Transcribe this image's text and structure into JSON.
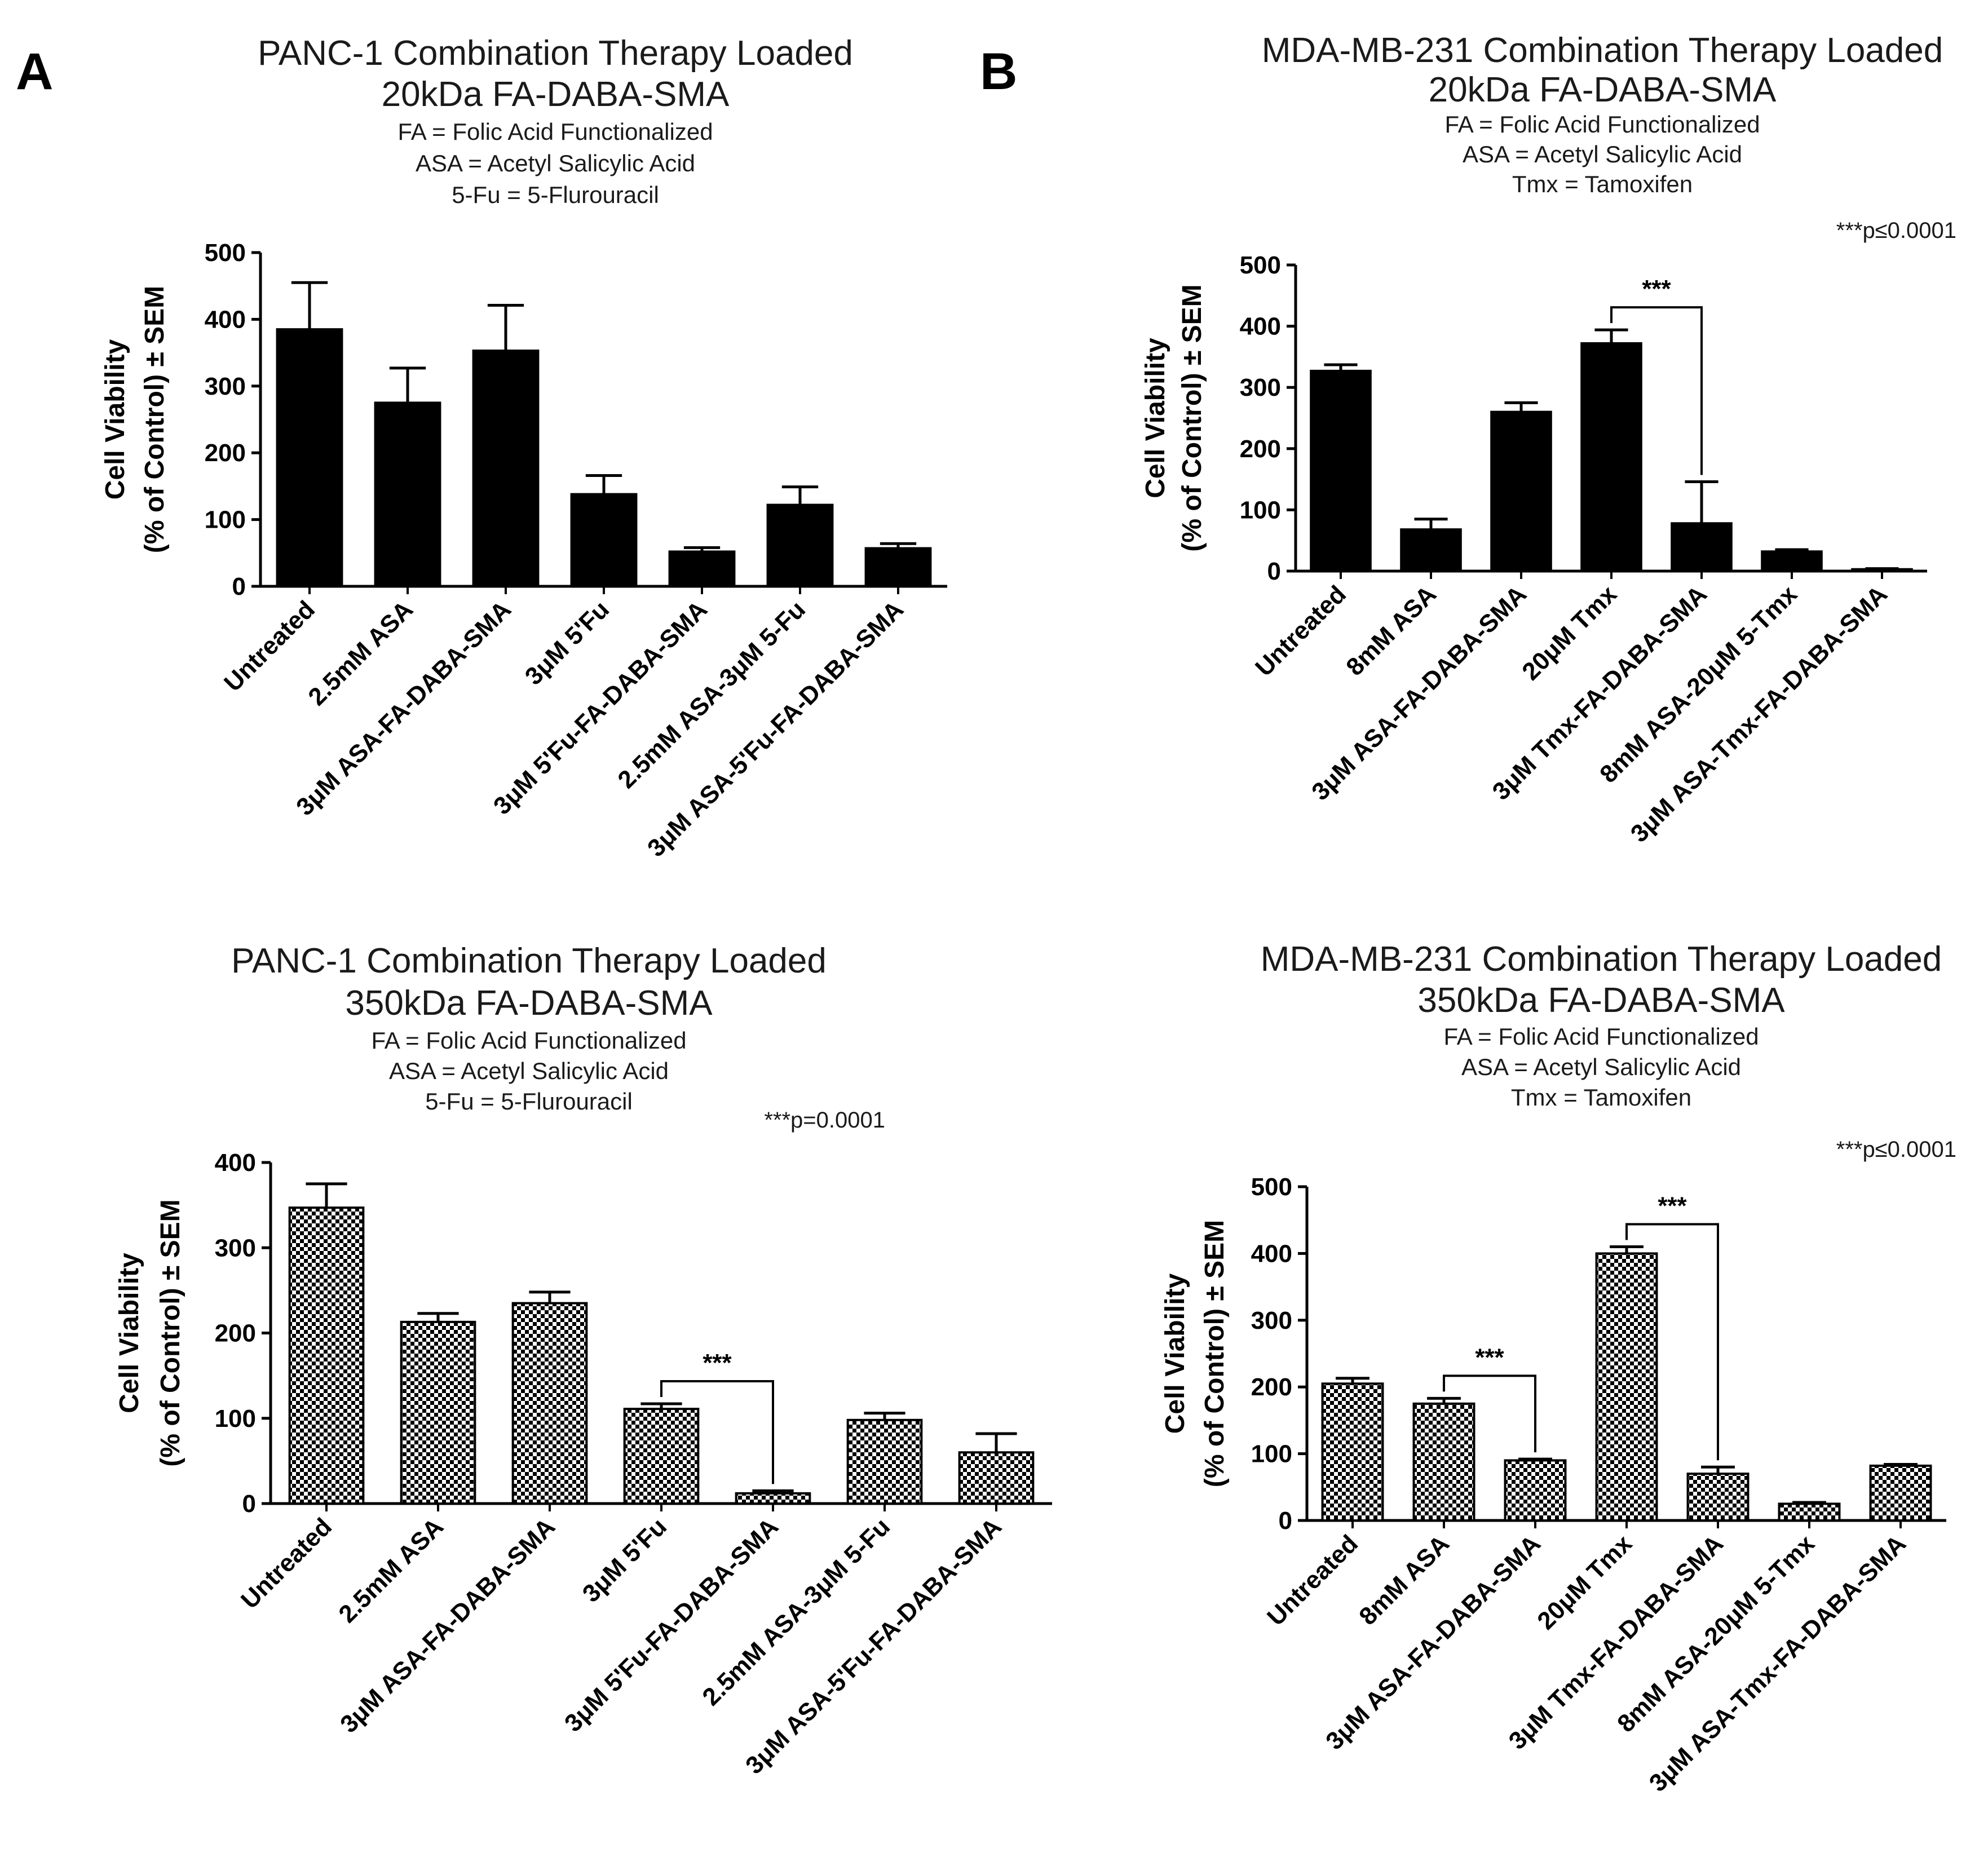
{
  "panel_labels": [
    "A",
    "B"
  ],
  "chart_data": [
    {
      "type": "bar",
      "fill": "solid",
      "panel": "A",
      "title": "PANC-1 Combination Therapy Loaded",
      "subtitle": "20kDa FA-DABA-SMA",
      "notes": [
        "FA = Folic Acid Functionalized",
        "ASA = Acetyl Salicylic Acid",
        "5-Fu = 5-Flurouracil"
      ],
      "ylabel_line1": "Cell Viability",
      "ylabel_line2": "(% of Control) ± SEM",
      "ylim": [
        0,
        500
      ],
      "yticks": [
        0,
        100,
        200,
        300,
        400,
        500
      ],
      "categories": [
        "Untreated",
        "2.5mM ASA",
        "3μM ASA-FA-DABA-SMA",
        "3μM 5'Fu",
        "3μM 5'Fu-FA-DABA-SMA",
        "2.5mM ASA-3μM 5-Fu",
        "3μM ASA-5'Fu-FA-DABA-SMA"
      ],
      "values": [
        385,
        275,
        353,
        138,
        52,
        122,
        57
      ],
      "errors": [
        70,
        52,
        68,
        28,
        6,
        27,
        7
      ],
      "significance_note": "",
      "brackets": []
    },
    {
      "type": "bar",
      "fill": "solid",
      "panel": "B",
      "title": "MDA-MB-231 Combination Therapy Loaded",
      "subtitle": "20kDa FA-DABA-SMA",
      "notes": [
        "FA = Folic Acid Functionalized",
        "ASA = Acetyl Salicylic Acid",
        "Tmx = Tamoxifen"
      ],
      "ylabel_line1": "Cell Viability",
      "ylabel_line2": "(% of Control) ± SEM",
      "ylim": [
        0,
        500
      ],
      "yticks": [
        0,
        100,
        200,
        300,
        400,
        500
      ],
      "categories": [
        "Untreated",
        "8mM ASA",
        "3μM ASA-FA-DABA-SMA",
        "20μM Tmx",
        "3μM Tmx-FA-DABA-SMA",
        "8mM ASA-20μM 5-Tmx",
        "3μM ASA-Tmx-FA-DABA-SMA"
      ],
      "values": [
        327,
        68,
        260,
        372,
        78,
        32,
        3
      ],
      "errors": [
        10,
        17,
        15,
        22,
        68,
        3,
        1
      ],
      "significance_note": "***p≤0.0001",
      "brackets": [
        {
          "from": 3,
          "to": 4,
          "label": "***"
        }
      ]
    },
    {
      "type": "bar",
      "fill": "checkered",
      "panel": "",
      "title": "PANC-1 Combination Therapy Loaded",
      "subtitle": "350kDa FA-DABA-SMA",
      "notes": [
        "FA = Folic Acid Functionalized",
        "ASA = Acetyl Salicylic Acid",
        "5-Fu = 5-Flurouracil"
      ],
      "ylabel_line1": "Cell Viability",
      "ylabel_line2": "(% of Control) ± SEM",
      "ylim": [
        0,
        400
      ],
      "yticks": [
        0,
        100,
        200,
        300,
        400
      ],
      "categories": [
        "Untreated",
        "2.5mM ASA",
        "3μM ASA-FA-DABA-SMA",
        "3μM 5'Fu",
        "3μM 5'Fu-FA-DABA-SMA",
        "2.5mM ASA-3μM 5-Fu",
        "3μM ASA-5'Fu-FA-DABA-SMA"
      ],
      "values": [
        347,
        213,
        235,
        111,
        12,
        98,
        60
      ],
      "errors": [
        28,
        10,
        13,
        6,
        3,
        8,
        22
      ],
      "significance_note": "***p=0.0001",
      "brackets": [
        {
          "from": 3,
          "to": 4,
          "label": "***"
        }
      ]
    },
    {
      "type": "bar",
      "fill": "checkered",
      "panel": "",
      "title": "MDA-MB-231 Combination Therapy Loaded",
      "subtitle": "350kDa FA-DABA-SMA",
      "notes": [
        "FA = Folic Acid Functionalized",
        "ASA = Acetyl Salicylic Acid",
        "Tmx = Tamoxifen"
      ],
      "ylabel_line1": "Cell Viability",
      "ylabel_line2": "(% of Control) ± SEM",
      "ylim": [
        0,
        500
      ],
      "yticks": [
        0,
        100,
        200,
        300,
        400,
        500
      ],
      "categories": [
        "Untreated",
        "8mM ASA",
        "3μM ASA-FA-DABA-SMA",
        "20μM Tmx",
        "3μM Tmx-FA-DABA-SMA",
        "8mM ASA-20μM 5-Tmx",
        "3μM ASA-Tmx-FA-DABA-SMA"
      ],
      "values": [
        205,
        175,
        90,
        400,
        70,
        25,
        82
      ],
      "errors": [
        8,
        8,
        2,
        10,
        10,
        2,
        2
      ],
      "significance_note": "***p≤0.0001",
      "brackets": [
        {
          "from": 1,
          "to": 2,
          "label": "***"
        },
        {
          "from": 3,
          "to": 4,
          "label": "***"
        }
      ]
    }
  ]
}
